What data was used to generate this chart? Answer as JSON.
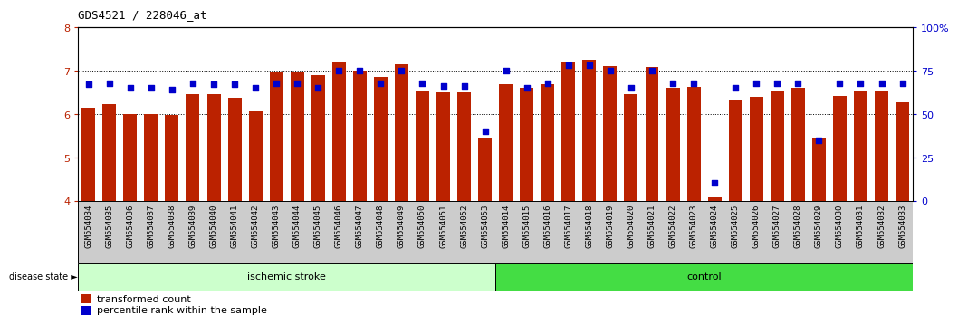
{
  "title": "GDS4521 / 228046_at",
  "samples": [
    "GSM554034",
    "GSM554035",
    "GSM554036",
    "GSM554037",
    "GSM554038",
    "GSM554039",
    "GSM554040",
    "GSM554041",
    "GSM554042",
    "GSM554043",
    "GSM554044",
    "GSM554045",
    "GSM554046",
    "GSM554047",
    "GSM554048",
    "GSM554049",
    "GSM554050",
    "GSM554051",
    "GSM554052",
    "GSM554053",
    "GSM554014",
    "GSM554015",
    "GSM554016",
    "GSM554017",
    "GSM554018",
    "GSM554019",
    "GSM554020",
    "GSM554021",
    "GSM554022",
    "GSM554023",
    "GSM554024",
    "GSM554025",
    "GSM554026",
    "GSM554027",
    "GSM554028",
    "GSM554029",
    "GSM554030",
    "GSM554031",
    "GSM554032",
    "GSM554033"
  ],
  "bar_values": [
    6.15,
    6.22,
    6.0,
    6.0,
    5.97,
    6.47,
    6.47,
    6.38,
    6.07,
    6.97,
    6.97,
    6.9,
    7.22,
    7.0,
    6.85,
    7.15,
    6.52,
    6.5,
    6.5,
    5.45,
    6.7,
    6.6,
    6.7,
    7.2,
    7.25,
    7.1,
    6.45,
    7.08,
    6.6,
    6.62,
    4.08,
    6.33,
    6.4,
    6.55,
    6.6,
    5.45,
    6.42,
    6.52,
    6.52,
    6.27
  ],
  "percentile_values": [
    67,
    68,
    65,
    65,
    64,
    68,
    67,
    67,
    65,
    68,
    68,
    65,
    75,
    75,
    68,
    75,
    68,
    66,
    66,
    40,
    75,
    65,
    68,
    78,
    78,
    75,
    65,
    75,
    68,
    68,
    10,
    65,
    68,
    68,
    68,
    35,
    68,
    68,
    68,
    68
  ],
  "ischemic_count": 20,
  "control_count": 20,
  "bar_color": "#bb2200",
  "dot_color": "#0000cc",
  "ylim_left": [
    4,
    8
  ],
  "ylim_right": [
    0,
    100
  ],
  "yticks_left": [
    4,
    5,
    6,
    7,
    8
  ],
  "yticks_right": [
    0,
    25,
    50,
    75,
    100
  ],
  "ylabel_right_labels": [
    "0",
    "25",
    "50",
    "75",
    "100%"
  ],
  "label_area_color": "#cccccc",
  "ischemic_color": "#ccffcc",
  "control_color": "#44dd44"
}
